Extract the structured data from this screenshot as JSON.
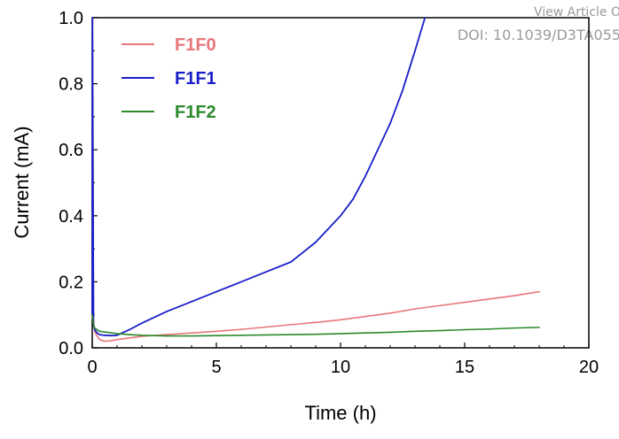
{
  "watermark": {
    "line1": "View Article O",
    "line2": "DOI: 10.1039/D3TA055"
  },
  "chart_data": {
    "type": "line",
    "xlabel": "Time (h)",
    "ylabel": "Current (mA)",
    "xlim": [
      0,
      20
    ],
    "ylim": [
      0,
      1.0
    ],
    "xticks": [
      "0",
      "5",
      "10",
      "15",
      "20"
    ],
    "yticks": [
      "0.0",
      "0.2",
      "0.4",
      "0.6",
      "0.8",
      "1.0"
    ],
    "legend_position": "top-left",
    "grid": false,
    "series": [
      {
        "name": "F1F0",
        "color": "#e8777b",
        "x": [
          0,
          0.02,
          0.05,
          0.1,
          0.2,
          0.3,
          0.4,
          0.5,
          0.8,
          1.0,
          1.5,
          2,
          3,
          4,
          5,
          6,
          7,
          8,
          9,
          10,
          11,
          12,
          13,
          14,
          15,
          16,
          17,
          18
        ],
        "y": [
          0.09,
          0.76,
          0.08,
          0.05,
          0.035,
          0.025,
          0.022,
          0.02,
          0.022,
          0.025,
          0.03,
          0.035,
          0.04,
          0.045,
          0.05,
          0.056,
          0.063,
          0.07,
          0.077,
          0.085,
          0.095,
          0.105,
          0.118,
          0.128,
          0.138,
          0.148,
          0.158,
          0.17
        ]
      },
      {
        "name": "F1F1",
        "color": "#1a1fc8",
        "x": [
          0,
          0.01,
          0.02,
          0.05,
          0.1,
          0.2,
          0.3,
          0.5,
          0.8,
          1.0,
          1.5,
          2,
          3,
          4,
          5,
          6,
          7,
          8,
          9,
          10,
          10.5,
          11,
          11.5,
          12,
          12.5,
          13,
          13.4
        ],
        "y": [
          0.1,
          1.0,
          0.77,
          0.07,
          0.055,
          0.045,
          0.04,
          0.038,
          0.037,
          0.038,
          0.055,
          0.075,
          0.11,
          0.14,
          0.17,
          0.2,
          0.23,
          0.26,
          0.32,
          0.4,
          0.45,
          0.52,
          0.6,
          0.68,
          0.78,
          0.9,
          1.0
        ]
      },
      {
        "name": "F1F2",
        "color": "#2c8a2c",
        "x": [
          0,
          0.05,
          0.1,
          0.2,
          0.3,
          0.5,
          0.8,
          1.0,
          1.5,
          2,
          3,
          4,
          5,
          6,
          7,
          8,
          9,
          10,
          11,
          12,
          13,
          14,
          15,
          16,
          17,
          18
        ],
        "y": [
          0.1,
          0.07,
          0.06,
          0.055,
          0.05,
          0.048,
          0.045,
          0.043,
          0.04,
          0.038,
          0.036,
          0.036,
          0.037,
          0.038,
          0.039,
          0.04,
          0.041,
          0.043,
          0.045,
          0.047,
          0.05,
          0.052,
          0.055,
          0.057,
          0.06,
          0.062
        ]
      }
    ]
  }
}
